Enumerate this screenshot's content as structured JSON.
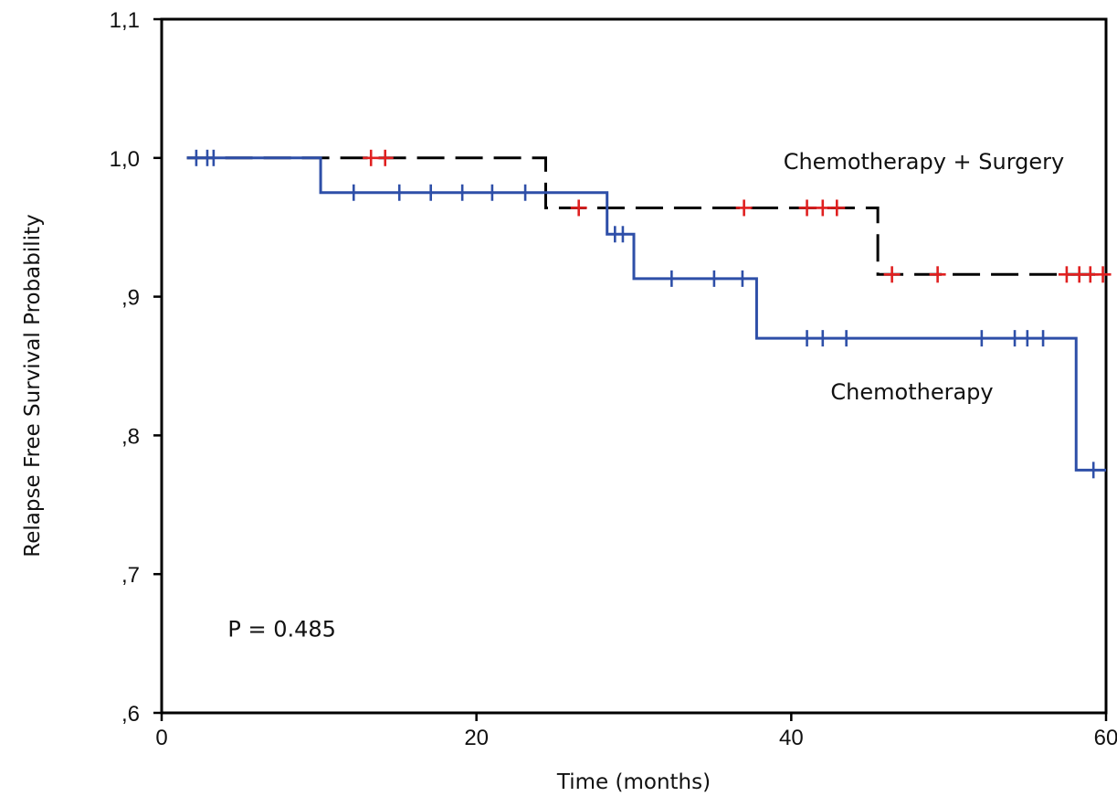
{
  "chart_data": {
    "type": "line",
    "step": true,
    "xlabel": "Time (months)",
    "ylabel": "Relapse Free Survival Probability",
    "xlim": [
      0,
      60
    ],
    "ylim": [
      0.6,
      1.1
    ],
    "x_ticks": [
      0,
      20,
      40,
      60
    ],
    "x_tick_labels": [
      "0",
      "20",
      "40",
      "60"
    ],
    "y_ticks": [
      0.6,
      0.7,
      0.8,
      0.9,
      1.0,
      1.1
    ],
    "y_tick_labels": [
      ",6",
      ",7",
      ",8",
      ",9",
      "1,0",
      "1,1"
    ],
    "grid": false,
    "annotations": [
      {
        "text": "P = 0.485",
        "x": 4.2,
        "y": 0.655
      },
      {
        "text": "Chemotherapy + Surgery",
        "x": 39.5,
        "y": 0.992
      },
      {
        "text": "Chemotherapy",
        "x": 42.5,
        "y": 0.826
      }
    ],
    "series": [
      {
        "name": "Chemotherapy + Surgery",
        "color": "#000000",
        "censor_color": "#e02020",
        "dashed": true,
        "steps": [
          [
            1.6,
            1.0
          ],
          [
            24.4,
            0.964
          ],
          [
            45.5,
            0.916
          ],
          [
            60.0,
            0.916
          ]
        ],
        "censored": [
          [
            13.3,
            1.0
          ],
          [
            14.2,
            1.0
          ],
          [
            26.5,
            0.964
          ],
          [
            37.0,
            0.964
          ],
          [
            41.0,
            0.964
          ],
          [
            42.0,
            0.964
          ],
          [
            42.9,
            0.964
          ],
          [
            46.4,
            0.916
          ],
          [
            49.3,
            0.916
          ],
          [
            57.5,
            0.916
          ],
          [
            58.3,
            0.916
          ],
          [
            59.0,
            0.916
          ],
          [
            59.8,
            0.916
          ]
        ]
      },
      {
        "name": "Chemotherapy",
        "color": "#2e4fa8",
        "censor_color": "#2e4fa8",
        "dashed": false,
        "steps": [
          [
            1.6,
            1.0
          ],
          [
            10.1,
            0.975
          ],
          [
            28.3,
            0.945
          ],
          [
            30.0,
            0.913
          ],
          [
            37.8,
            0.87
          ],
          [
            58.1,
            0.775
          ],
          [
            60.0,
            0.775
          ]
        ],
        "censored": [
          [
            2.2,
            1.0
          ],
          [
            2.9,
            1.0
          ],
          [
            3.3,
            1.0
          ],
          [
            12.2,
            0.975
          ],
          [
            15.1,
            0.975
          ],
          [
            17.1,
            0.975
          ],
          [
            19.1,
            0.975
          ],
          [
            21.0,
            0.975
          ],
          [
            23.1,
            0.975
          ],
          [
            28.8,
            0.945
          ],
          [
            29.3,
            0.945
          ],
          [
            32.4,
            0.913
          ],
          [
            35.1,
            0.913
          ],
          [
            36.9,
            0.913
          ],
          [
            41.0,
            0.87
          ],
          [
            42.0,
            0.87
          ],
          [
            43.5,
            0.87
          ],
          [
            52.1,
            0.87
          ],
          [
            54.2,
            0.87
          ],
          [
            55.0,
            0.87
          ],
          [
            56.0,
            0.87
          ],
          [
            59.2,
            0.775
          ]
        ]
      }
    ]
  }
}
